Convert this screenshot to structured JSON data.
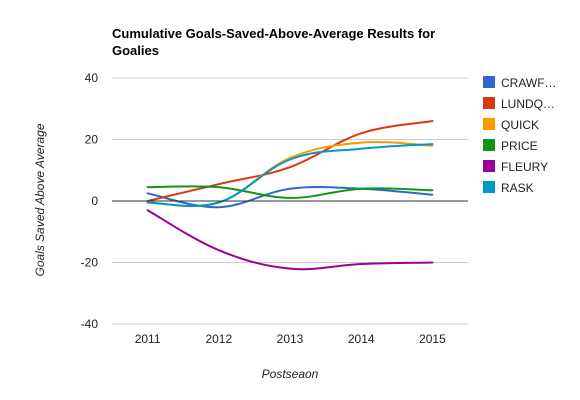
{
  "chart_data": {
    "type": "line",
    "title_line1": "Cumulative Goals-Saved-Above-Average Results for",
    "title_line2": "Goalies",
    "xlabel": "Postseaon",
    "ylabel": "Goals Saved Above Average",
    "categories": [
      "2011",
      "2012",
      "2013",
      "2014",
      "2015"
    ],
    "ylim": [
      -40,
      40
    ],
    "yticks": [
      40,
      20,
      0,
      -20,
      -40
    ],
    "grid": true,
    "legend_position": "right",
    "series": [
      {
        "name": "CRAWFORD",
        "display_name": "CRAWF…",
        "color": "#3366cc",
        "values": [
          2.5,
          -2,
          4,
          4,
          2
        ]
      },
      {
        "name": "LUNDQVIST",
        "display_name": "LUNDQ…",
        "color": "#dc3912",
        "values": [
          0,
          5.5,
          11,
          22,
          26
        ]
      },
      {
        "name": "QUICK",
        "display_name": "QUICK",
        "color": "#ff9900",
        "values": [
          -0.5,
          -0.5,
          14,
          19,
          18
        ]
      },
      {
        "name": "PRICE",
        "display_name": "PRICE",
        "color": "#109618",
        "values": [
          4.5,
          4.5,
          1,
          4,
          3.5
        ]
      },
      {
        "name": "FLEURY",
        "display_name": "FLEURY",
        "color": "#990099",
        "values": [
          -3,
          -16,
          -22,
          -20.5,
          -20
        ]
      },
      {
        "name": "RASK",
        "display_name": "RASK",
        "color": "#0099c6",
        "values": [
          -0.5,
          -0.5,
          13.5,
          17,
          18.5
        ]
      }
    ]
  }
}
